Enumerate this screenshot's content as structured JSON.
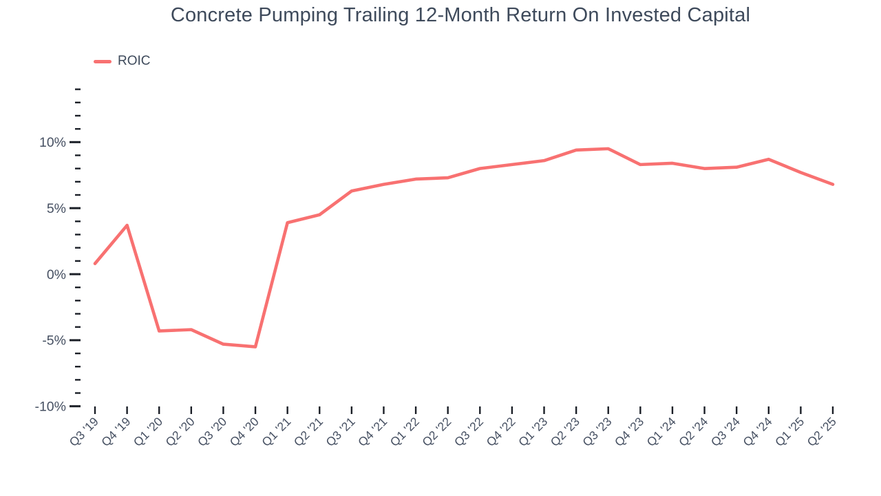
{
  "title": "Concrete Pumping Trailing 12-Month Return On Invested Capital",
  "colors": {
    "line": "#f87171",
    "text": "#3e4a5b",
    "axis_tick": "#1b1f27",
    "background": "#ffffff"
  },
  "legend": {
    "items": [
      {
        "label": "ROIC",
        "color": "#f87171"
      }
    ]
  },
  "y_axis": {
    "major_ticks": [
      {
        "value": -10,
        "label": "-10%"
      },
      {
        "value": -5,
        "label": "-5%"
      },
      {
        "value": 0,
        "label": "0%"
      },
      {
        "value": 5,
        "label": "5%"
      },
      {
        "value": 10,
        "label": "10%"
      }
    ],
    "minor_tick_step": 1,
    "min": -10,
    "max": 14
  },
  "chart_data": {
    "type": "line",
    "title": "Concrete Pumping Trailing 12-Month Return On Invested Capital",
    "categories": [
      "Q3 '19",
      "Q4 '19",
      "Q1 '20",
      "Q2 '20",
      "Q3 '20",
      "Q4 '20",
      "Q1 '21",
      "Q2 '21",
      "Q3 '21",
      "Q4 '21",
      "Q1 '22",
      "Q2 '22",
      "Q3 '22",
      "Q4 '22",
      "Q1 '23",
      "Q2 '23",
      "Q3 '23",
      "Q4 '23",
      "Q1 '24",
      "Q2 '24",
      "Q3 '24",
      "Q4 '24",
      "Q1 '25",
      "Q2 '25"
    ],
    "series": [
      {
        "name": "ROIC",
        "color": "#f87171",
        "values": [
          0.8,
          3.7,
          -4.3,
          -4.2,
          -5.3,
          -5.5,
          3.9,
          4.5,
          6.3,
          6.8,
          7.2,
          7.3,
          8.0,
          8.3,
          8.6,
          9.4,
          9.5,
          8.3,
          8.4,
          8.0,
          8.1,
          8.7,
          7.7,
          6.8
        ]
      }
    ],
    "xlabel": "",
    "ylabel": "",
    "ylim": [
      -10,
      14
    ],
    "y_unit": "%",
    "grid": false,
    "legend_position": "top-left"
  }
}
